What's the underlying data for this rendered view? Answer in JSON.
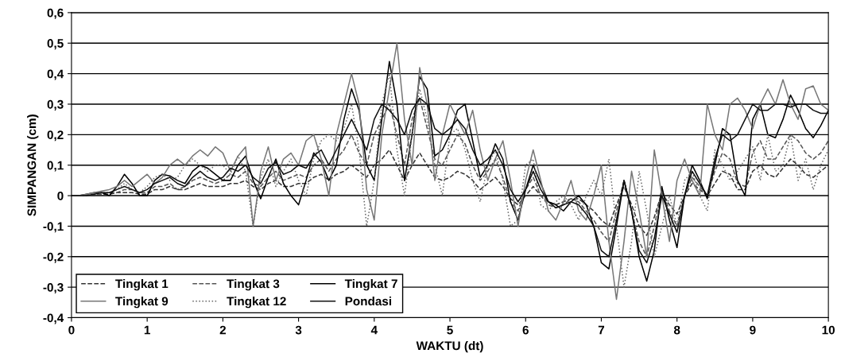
{
  "chart_data": {
    "type": "line",
    "xlabel": "WAKTU (dt)",
    "ylabel": "SIMPANGAN (cm)",
    "x": [
      0,
      0.1,
      0.2,
      0.3,
      0.4,
      0.5,
      0.6,
      0.7,
      0.8,
      0.9,
      1,
      1.1,
      1.2,
      1.3,
      1.4,
      1.5,
      1.6,
      1.7,
      1.8,
      1.9,
      2,
      2.1,
      2.2,
      2.3,
      2.4,
      2.5,
      2.6,
      2.7,
      2.8,
      2.9,
      3,
      3.1,
      3.2,
      3.3,
      3.4,
      3.5,
      3.6,
      3.7,
      3.8,
      3.9,
      4,
      4.1,
      4.2,
      4.3,
      4.4,
      4.5,
      4.6,
      4.7,
      4.8,
      4.9,
      5,
      5.1,
      5.2,
      5.3,
      5.4,
      5.5,
      5.6,
      5.7,
      5.8,
      5.9,
      6,
      6.1,
      6.2,
      6.3,
      6.4,
      6.5,
      6.6,
      6.7,
      6.8,
      6.9,
      7,
      7.1,
      7.2,
      7.3,
      7.4,
      7.5,
      7.6,
      7.7,
      7.8,
      7.9,
      8,
      8.1,
      8.2,
      8.3,
      8.4,
      8.5,
      8.6,
      8.7,
      8.8,
      8.9,
      9,
      9.1,
      9.2,
      9.3,
      9.4,
      9.5,
      9.6,
      9.7,
      9.8,
      9.9,
      10
    ],
    "series": [
      {
        "name": "Tingkat 1",
        "color": "#333333",
        "line_style": "dashed",
        "values": [
          0,
          0,
          0,
          0,
          0.005,
          0.005,
          0.01,
          0.01,
          0.01,
          0.005,
          0.005,
          0.02,
          0.02,
          0.03,
          0.02,
          0.02,
          0.03,
          0.04,
          0.03,
          0.03,
          0.03,
          0.04,
          0.04,
          0.05,
          0.03,
          0.02,
          0.04,
          0.05,
          0.03,
          0.03,
          0.04,
          0.04,
          0.06,
          0.07,
          0.05,
          0.07,
          0.08,
          0.1,
          0.08,
          0.06,
          0.1,
          0.12,
          0.15,
          0.1,
          0.05,
          0.1,
          0.14,
          0.1,
          0.06,
          0.05,
          0.06,
          0.08,
          0.07,
          0.05,
          0.02,
          0.04,
          0.06,
          0.03,
          -0.01,
          -0.03,
          0,
          0.03,
          0,
          -0.02,
          -0.03,
          -0.02,
          -0.01,
          -0.01,
          -0.03,
          -0.05,
          -0.08,
          -0.1,
          -0.03,
          0.03,
          -0.03,
          -0.1,
          -0.13,
          -0.07,
          0.01,
          -0.03,
          -0.06,
          0,
          0.04,
          0.02,
          0,
          0.04,
          0.08,
          0.07,
          0.02,
          0.02,
          0.08,
          0.1,
          0.07,
          0.06,
          0.09,
          0.12,
          0.1,
          0.07,
          0.06,
          0.08,
          0.1
        ]
      },
      {
        "name": "Tingkat 3",
        "color": "#555555",
        "line_style": "dashed",
        "values": [
          0,
          0,
          0,
          0.005,
          0.005,
          0.01,
          0.01,
          0.02,
          0.02,
          0.01,
          0.01,
          0.03,
          0.03,
          0.04,
          0.02,
          0.03,
          0.05,
          0.06,
          0.05,
          0.04,
          0.05,
          0.07,
          0.06,
          0.08,
          0.04,
          0.03,
          0.06,
          0.08,
          0.05,
          0.06,
          0.07,
          0.06,
          0.1,
          0.12,
          0.08,
          0.12,
          0.15,
          0.2,
          0.14,
          0.1,
          0.2,
          0.25,
          0.3,
          0.2,
          0.1,
          0.25,
          0.32,
          0.22,
          0.12,
          0.1,
          0.15,
          0.2,
          0.17,
          0.1,
          0.05,
          0.08,
          0.12,
          0.06,
          -0.02,
          -0.05,
          0.02,
          0.06,
          0,
          -0.03,
          -0.04,
          -0.03,
          -0.01,
          -0.02,
          -0.05,
          -0.08,
          -0.12,
          -0.15,
          -0.05,
          0.05,
          -0.05,
          -0.15,
          -0.2,
          -0.1,
          0.02,
          -0.05,
          -0.1,
          0,
          0.06,
          0.03,
          0,
          0.08,
          0.14,
          0.12,
          0.04,
          0.03,
          0.14,
          0.18,
          0.12,
          0.12,
          0.16,
          0.2,
          0.18,
          0.14,
          0.12,
          0.14,
          0.18
        ]
      },
      {
        "name": "Tingkat 7",
        "color": "#000000",
        "line_style": "solid",
        "values": [
          0,
          0,
          0.005,
          0.01,
          0.01,
          0,
          0.03,
          0.07,
          0.04,
          0,
          0,
          0.05,
          0.07,
          0.065,
          0.05,
          0.04,
          0.08,
          0.1,
          0.09,
          0.07,
          0.05,
          0.05,
          0.1,
          0.13,
          0.05,
          -0.01,
          0.06,
          0.12,
          0.04,
          0,
          -0.03,
          0.05,
          0.14,
          0.11,
          0.05,
          0.1,
          0.25,
          0.35,
          0.28,
          0.1,
          0.05,
          0.25,
          0.44,
          0.3,
          0.05,
          0.2,
          0.39,
          0.35,
          0.13,
          0.15,
          0.2,
          0.28,
          0.3,
          0.18,
          0.06,
          0.1,
          0.17,
          0.12,
          -0.02,
          -0.08,
          0.02,
          0.1,
          0.04,
          -0.02,
          -0.03,
          -0.05,
          -0.02,
          0,
          -0.03,
          -0.1,
          -0.22,
          -0.24,
          -0.1,
          0.05,
          -0.05,
          -0.2,
          -0.28,
          -0.18,
          0.03,
          -0.08,
          -0.17,
          0,
          0.1,
          0.05,
          -0.01,
          0.1,
          0.22,
          0.2,
          0.05,
          0,
          0.25,
          0.3,
          0.2,
          0.19,
          0.25,
          0.33,
          0.28,
          0.22,
          0.19,
          0.23,
          0.28
        ]
      },
      {
        "name": "Tingkat 9",
        "color": "#777777",
        "line_style": "solid",
        "values": [
          0,
          0,
          0.005,
          0.01,
          0.015,
          0.02,
          0.03,
          0.05,
          0.03,
          0.05,
          0.07,
          0.04,
          0.06,
          0.1,
          0.12,
          0.1,
          0.13,
          0.15,
          0.13,
          0.16,
          0.14,
          0.08,
          0.13,
          0.16,
          -0.1,
          0.08,
          0.16,
          0.05,
          0.12,
          0.14,
          0.1,
          0.18,
          0.2,
          0.12,
          0,
          0.2,
          0.3,
          0.4,
          0.3,
          0.02,
          -0.08,
          0.2,
          0.35,
          0.5,
          0.25,
          0.1,
          0.42,
          0.3,
          0.05,
          0.2,
          0.3,
          0.25,
          0.2,
          0.28,
          0.15,
          0.05,
          0.12,
          0.18,
          0.05,
          -0.1,
          0.05,
          0.15,
          0.05,
          -0.05,
          -0.08,
          -0.02,
          0.05,
          -0.05,
          -0.08,
          0,
          0.1,
          -0.15,
          -0.34,
          -0.15,
          0.08,
          -0.05,
          -0.2,
          0.15,
          0,
          -0.15,
          0.05,
          0.12,
          0.05,
          0,
          0.3,
          0.2,
          0.15,
          0.3,
          0.32,
          0.28,
          0.22,
          0.3,
          0.35,
          0.3,
          0.38,
          0.3,
          0.25,
          0.35,
          0.36,
          0.3,
          0.28
        ]
      },
      {
        "name": "Tingkat 12",
        "color": "#666666",
        "line_style": "dotted",
        "values": [
          0,
          0,
          0,
          0.005,
          0.01,
          0.01,
          0.02,
          0.04,
          0.02,
          0.01,
          0.03,
          0.06,
          0.07,
          0.05,
          0.06,
          0.1,
          0.12,
          0.1,
          0.08,
          0.1,
          0.1,
          0.07,
          0.13,
          0.08,
          -0.1,
          0.06,
          0.12,
          0.03,
          0.08,
          0.12,
          0.05,
          0,
          0.12,
          0.18,
          0.2,
          0.18,
          0.22,
          0.3,
          0.15,
          -0.1,
          0.05,
          0.3,
          0.4,
          0.15,
          0,
          0.2,
          0.35,
          0.25,
          0.1,
          0,
          0.2,
          0.22,
          0.15,
          0.05,
          -0.02,
          0.1,
          0.15,
          0.05,
          -0.1,
          -0.08,
          0.1,
          0.12,
          -0.03,
          -0.05,
          -0.02,
          0,
          -0.03,
          -0.08,
          0,
          0.05,
          0,
          0.12,
          -0.1,
          -0.3,
          -0.15,
          0.08,
          -0.05,
          -0.2,
          -0.1,
          0,
          -0.1,
          0.05,
          0.08,
          0,
          -0.05,
          0.15,
          0.1,
          0.05,
          0.08,
          0.12,
          0.16,
          0.05,
          0.2,
          0.08,
          0.1,
          0.2,
          0.05,
          0.12,
          0.02,
          0.1,
          0.15
        ]
      },
      {
        "name": "Pondasi",
        "color": "#111111",
        "line_style": "solid",
        "values": [
          0,
          0,
          0,
          0.005,
          0.01,
          0.01,
          0.02,
          0.03,
          0.02,
          0.01,
          0.02,
          0.04,
          0.05,
          0.06,
          0.04,
          0.03,
          0.06,
          0.08,
          0.06,
          0.05,
          0.06,
          0.09,
          0.08,
          0.1,
          0.06,
          0.04,
          0.09,
          0.11,
          0.07,
          0.08,
          0.1,
          0.09,
          0.13,
          0.15,
          0.1,
          0.15,
          0.2,
          0.25,
          0.2,
          0.15,
          0.25,
          0.3,
          0.28,
          0.25,
          0.2,
          0.28,
          0.32,
          0.3,
          0.22,
          0.2,
          0.22,
          0.25,
          0.22,
          0.15,
          0.1,
          0.12,
          0.15,
          0.1,
          0.02,
          -0.02,
          0.02,
          0.08,
          0.02,
          -0.02,
          -0.04,
          -0.03,
          -0.02,
          -0.03,
          -0.06,
          -0.1,
          -0.18,
          -0.2,
          -0.08,
          0.05,
          -0.05,
          -0.18,
          -0.22,
          -0.14,
          0,
          -0.06,
          -0.12,
          0,
          0.08,
          0.04,
          0,
          0.12,
          0.2,
          0.18,
          0.2,
          0.25,
          0.3,
          0.28,
          0.28,
          0.3,
          0.3,
          0.29,
          0.3,
          0.3,
          0.28,
          0.27,
          0.27
        ]
      }
    ],
    "xlim": [
      0,
      10
    ],
    "xticks": [
      0,
      1,
      2,
      3,
      4,
      5,
      6,
      7,
      8,
      9,
      10
    ],
    "ylim": [
      -0.4,
      0.6
    ],
    "yticks": [
      {
        "value": -0.4,
        "label": "-0,4"
      },
      {
        "value": -0.3,
        "label": "-0,3"
      },
      {
        "value": -0.2,
        "label": "-0,2"
      },
      {
        "value": -0.1,
        "label": "-0,1"
      },
      {
        "value": 0,
        "label": "0"
      },
      {
        "value": 0.1,
        "label": "0,1"
      },
      {
        "value": 0.2,
        "label": "0,2"
      },
      {
        "value": 0.3,
        "label": "0,3"
      },
      {
        "value": 0.4,
        "label": "0,4"
      },
      {
        "value": 0.5,
        "label": "0,5"
      },
      {
        "value": 0.6,
        "label": "0,6"
      }
    ],
    "grid": "y",
    "legend": "lower left",
    "marker": "none"
  }
}
